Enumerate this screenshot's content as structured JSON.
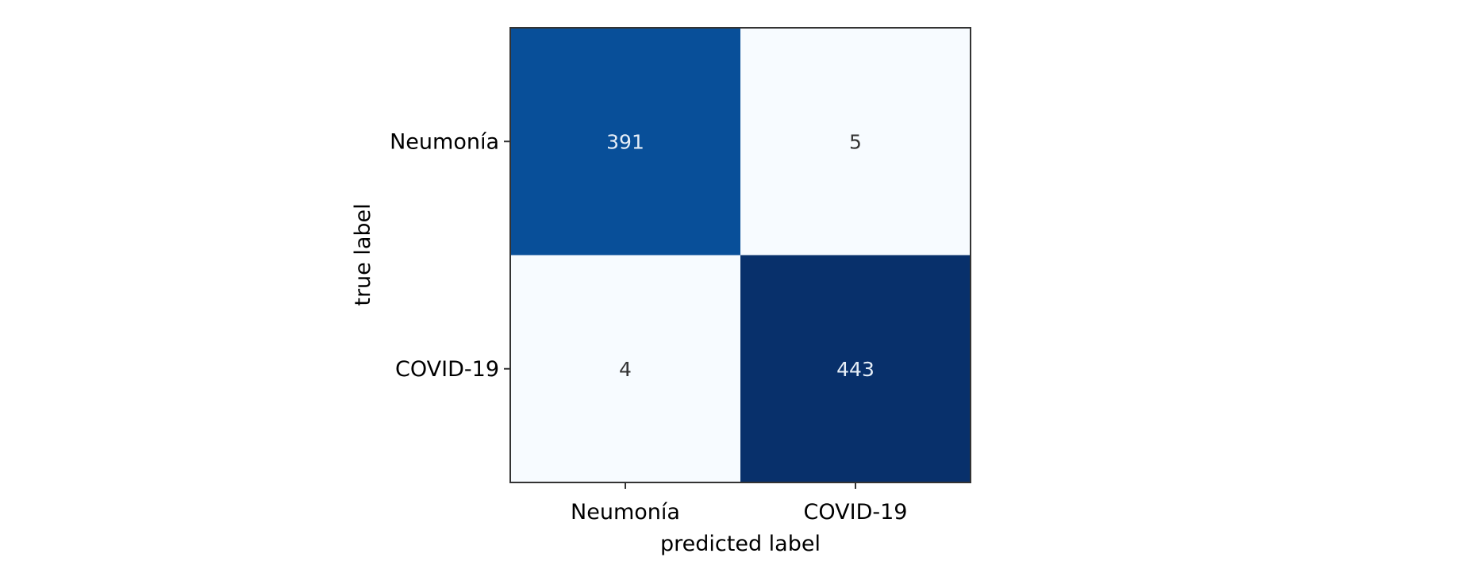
{
  "chart_data": {
    "type": "heatmap",
    "title": "",
    "xlabel": "predicted label",
    "ylabel": "true label",
    "x_categories": [
      "Neumonía",
      "COVID-19"
    ],
    "y_categories": [
      "Neumonía",
      "COVID-19"
    ],
    "values": [
      [
        391,
        5
      ],
      [
        4,
        443
      ]
    ],
    "colormap": "Blues",
    "colors": {
      "low": "#f7fbff",
      "high": "#08306b",
      "dark_text": "#333333",
      "light_text": "#e6eef7"
    },
    "grid": false,
    "colorbar": false
  }
}
